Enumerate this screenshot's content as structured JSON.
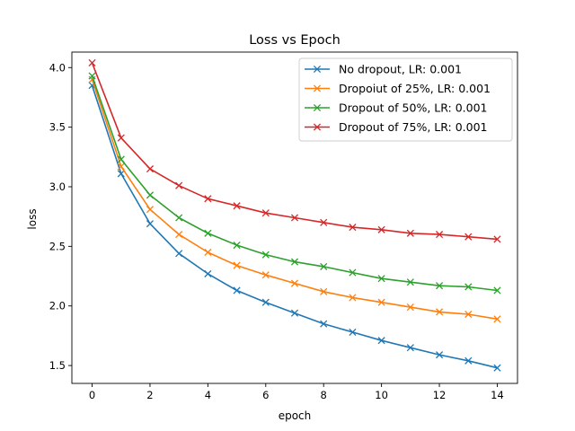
{
  "chart_data": {
    "type": "line",
    "title": "Loss vs Epoch",
    "xlabel": "epoch",
    "ylabel": "loss",
    "xlim": [
      -0.7,
      14.7
    ],
    "ylim": [
      1.35,
      4.13
    ],
    "xticks": [
      0,
      2,
      4,
      6,
      8,
      10,
      12,
      14
    ],
    "yticks": [
      1.5,
      2.0,
      2.5,
      3.0,
      3.5,
      4.0
    ],
    "ytick_labels": [
      "1.5",
      "2.0",
      "2.5",
      "3.0",
      "3.5",
      "4.0"
    ],
    "grid": false,
    "legend_position": "top-right",
    "marker": "x",
    "x": [
      0,
      1,
      2,
      3,
      4,
      5,
      6,
      7,
      8,
      9,
      10,
      11,
      12,
      13,
      14
    ],
    "series": [
      {
        "name": "No dropout, LR: 0.001",
        "color": "#1f77b4",
        "values": [
          3.85,
          3.11,
          2.69,
          2.44,
          2.27,
          2.13,
          2.03,
          1.94,
          1.85,
          1.78,
          1.71,
          1.65,
          1.59,
          1.54,
          1.48
        ]
      },
      {
        "name": "Dropoiut of 25%, LR: 0.001",
        "color": "#ff7f0e",
        "values": [
          3.9,
          3.17,
          2.81,
          2.6,
          2.45,
          2.34,
          2.26,
          2.19,
          2.12,
          2.07,
          2.03,
          1.99,
          1.95,
          1.93,
          1.89
        ]
      },
      {
        "name": "Dropout of 50%, LR: 0.001",
        "color": "#2ca02c",
        "values": [
          3.93,
          3.23,
          2.93,
          2.74,
          2.61,
          2.51,
          2.43,
          2.37,
          2.33,
          2.28,
          2.23,
          2.2,
          2.17,
          2.16,
          2.13
        ]
      },
      {
        "name": "Dropout of 75%, LR: 0.001",
        "color": "#d62728",
        "values": [
          4.04,
          3.41,
          3.15,
          3.01,
          2.9,
          2.84,
          2.78,
          2.74,
          2.7,
          2.66,
          2.64,
          2.61,
          2.6,
          2.58,
          2.56
        ]
      }
    ]
  }
}
